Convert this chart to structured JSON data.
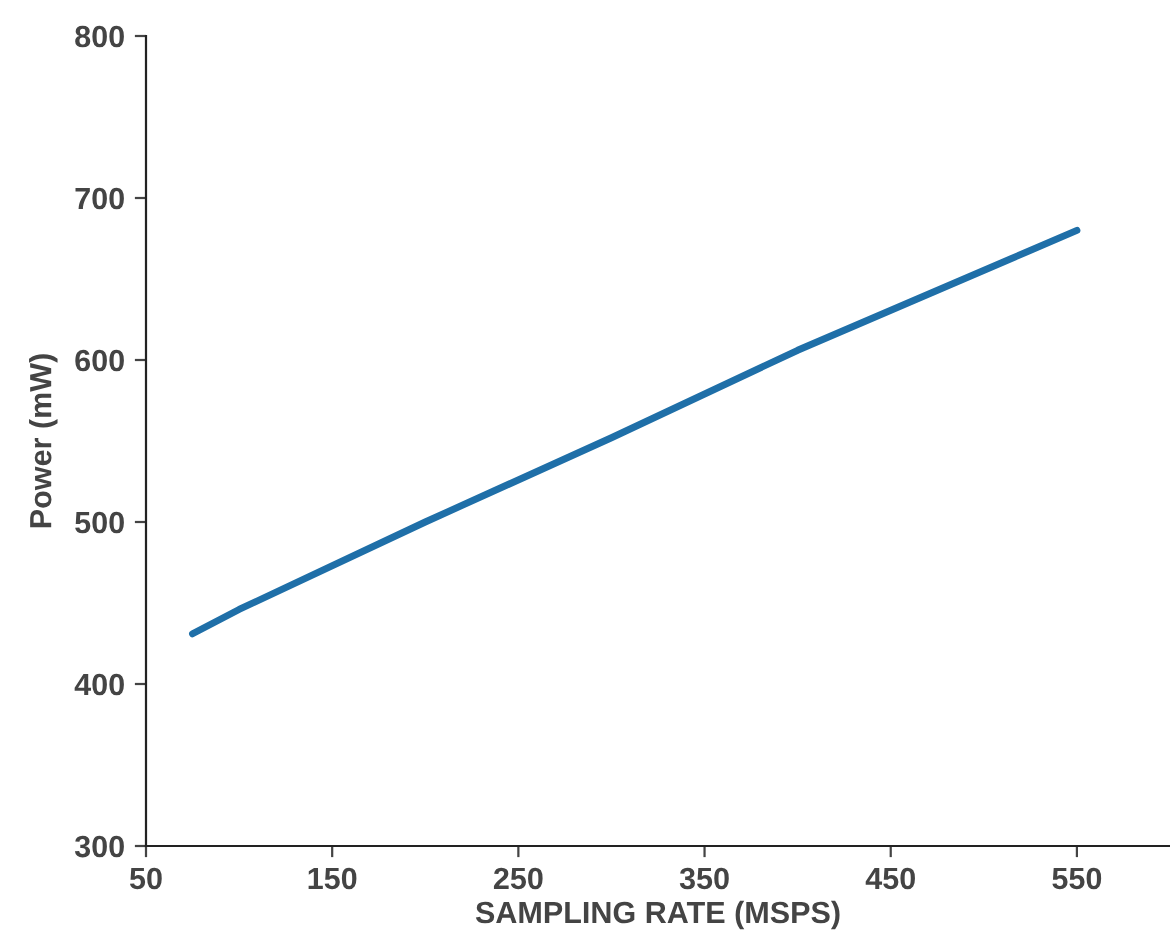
{
  "chart_data": {
    "type": "line",
    "xlabel": "SAMPLING RATE (MSPS)",
    "ylabel": "Power (mW)",
    "x": [
      75,
      100,
      200,
      300,
      400,
      550
    ],
    "series": [
      {
        "color": "#1f6fa8",
        "values": [
          431,
          446,
          500,
          552,
          606,
          680
        ]
      }
    ],
    "xlim": [
      50,
      600
    ],
    "xticks": [
      50,
      150,
      250,
      350,
      450,
      550
    ],
    "ylim": [
      300,
      800
    ],
    "yticks": [
      300,
      400,
      500,
      600,
      700,
      800
    ],
    "grid": false,
    "legend": false,
    "marker": "none",
    "line_style": "solid"
  }
}
